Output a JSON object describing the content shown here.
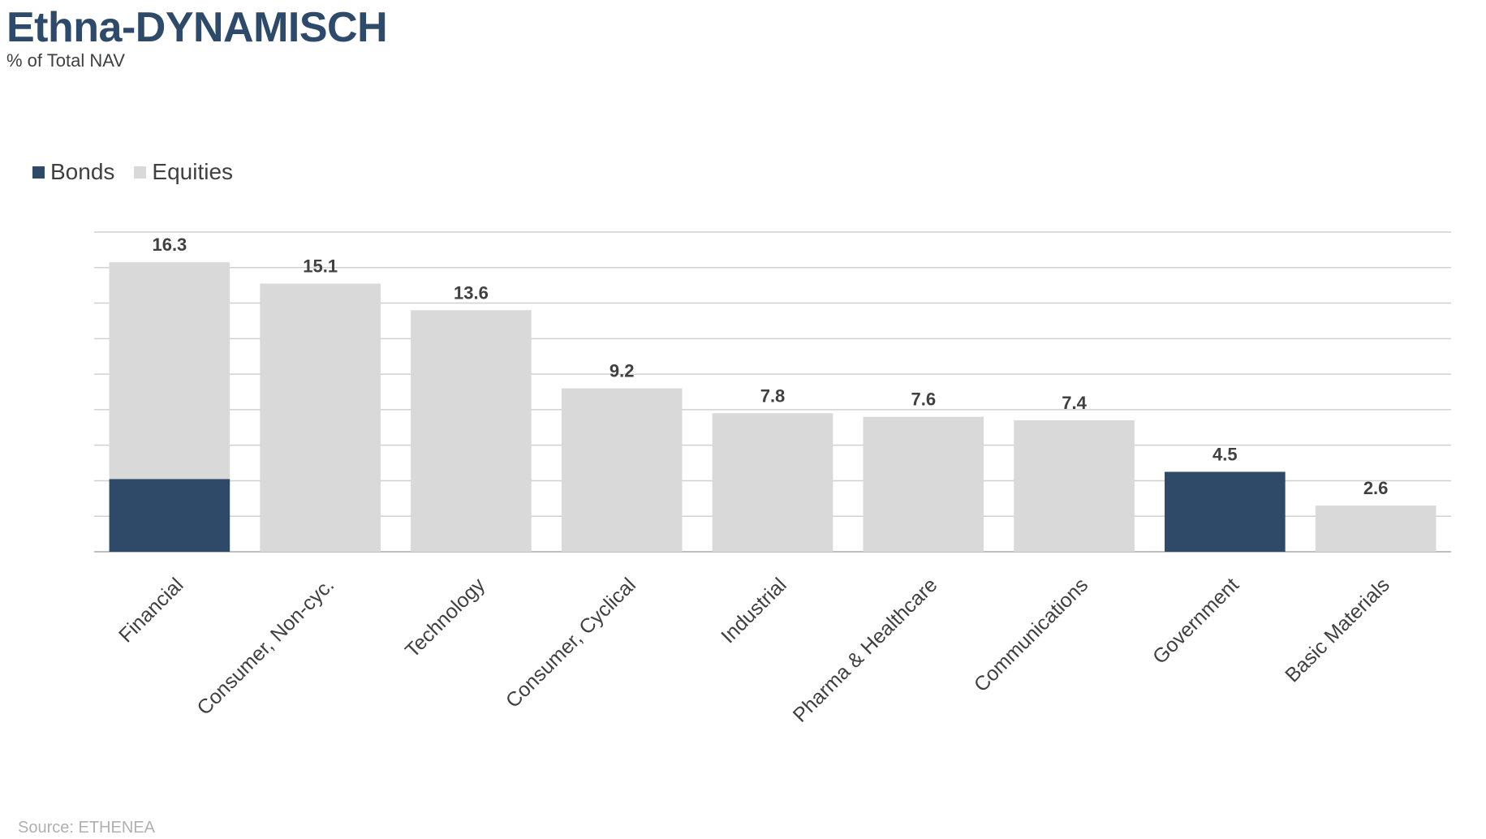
{
  "title": "Ethna-DYNAMISCH",
  "subtitle": "% of Total NAV",
  "source": "Source: ETHENEA",
  "colors": {
    "bonds": "#2f4a68",
    "equities": "#d9d9d9",
    "title": "#2d4a6b",
    "grid": "#d0d0d0",
    "label": "#404040"
  },
  "chart_data": {
    "type": "bar",
    "stacked": true,
    "categories": [
      "Financial",
      "Consumer, Non-cyc.",
      "Technology",
      "Consumer, Cyclical",
      "Industrial",
      "Pharma & Healthcare",
      "Communications",
      "Government",
      "Basic Materials"
    ],
    "series": [
      {
        "name": "Bonds",
        "values": [
          4.1,
          0,
          0,
          0,
          0,
          0,
          0,
          4.5,
          0
        ]
      },
      {
        "name": "Equities",
        "values": [
          12.2,
          15.1,
          13.6,
          9.2,
          7.8,
          7.6,
          7.4,
          0,
          2.6
        ]
      }
    ],
    "totals": [
      "16.3",
      "15.1",
      "13.6",
      "9.2",
      "7.8",
      "7.6",
      "7.4",
      "4.5",
      "2.6"
    ],
    "ylim": [
      0,
      18
    ],
    "ytick_step": 2,
    "y_tick_labels_shown": false,
    "grid": true,
    "legend_position": "top-left",
    "xlabel": "",
    "ylabel": ""
  }
}
